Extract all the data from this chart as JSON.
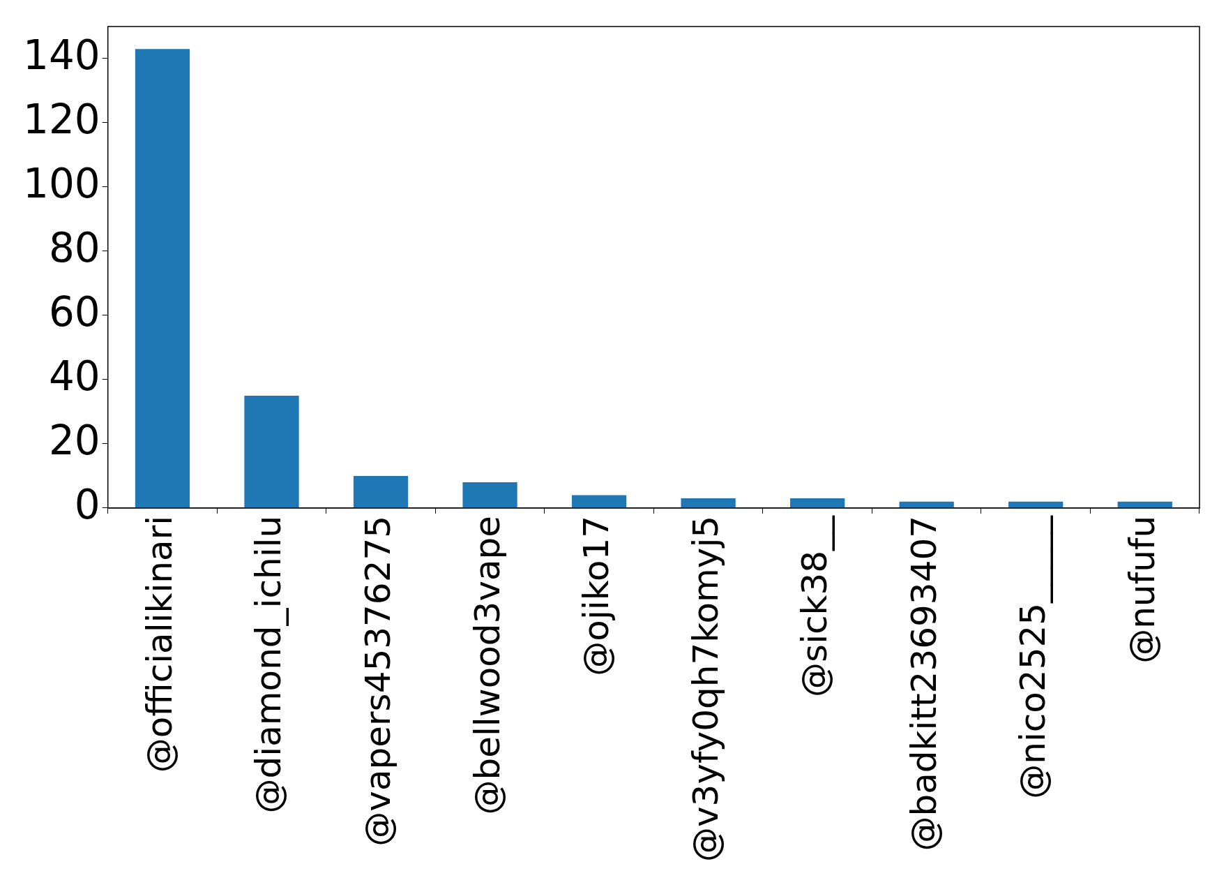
{
  "chart_data": {
    "type": "bar",
    "categories": [
      "@officialikinari",
      "@diamond_ichilu",
      "@vapers45376275",
      "@bellwood3vape",
      "@ojiko17",
      "@v3yfy0qh7komyj5",
      "@sick38__",
      "@badkitt23693407",
      "@nico2525_____",
      "@nufufu"
    ],
    "values": [
      143,
      35,
      10,
      8,
      4,
      3,
      3,
      2,
      2,
      2
    ],
    "color": "#1f77b4",
    "ylim": [
      0,
      150
    ],
    "yticks": [
      0,
      20,
      40,
      60,
      80,
      100,
      120,
      140
    ],
    "grid": false,
    "legend": false
  }
}
